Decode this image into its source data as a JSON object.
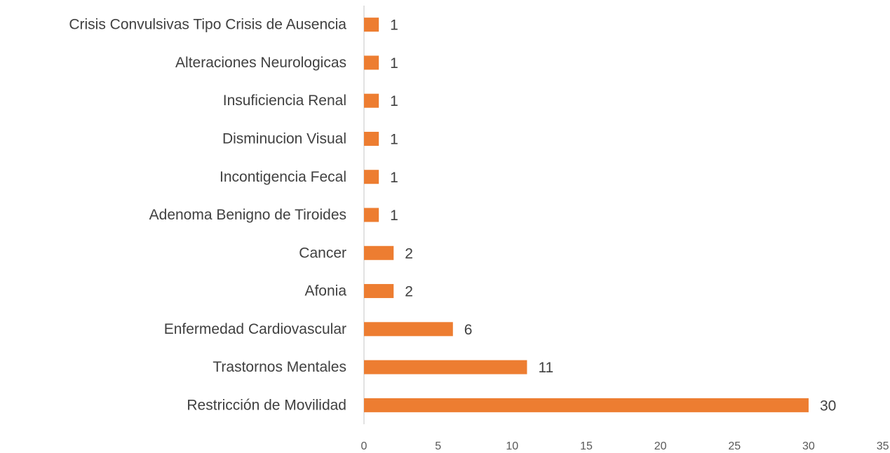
{
  "chart_data": {
    "type": "bar",
    "orientation": "horizontal",
    "categories": [
      "Crisis Convulsivas Tipo Crisis de Ausencia",
      "Alteraciones Neurologicas",
      "Insuficiencia Renal",
      "Disminucion Visual",
      "Incontigencia Fecal",
      "Adenoma Benigno de Tiroides",
      "Cancer",
      "Afonia",
      "Enfermedad Cardiovascular",
      "Trastornos Mentales",
      "Restricción de Movilidad"
    ],
    "values": [
      1,
      1,
      1,
      1,
      1,
      1,
      2,
      2,
      6,
      11,
      30
    ],
    "color": "#ed7d31",
    "xlim": [
      0,
      35
    ],
    "xticks": [
      0,
      5,
      10,
      15,
      20,
      25,
      30,
      35
    ],
    "grid": false
  }
}
